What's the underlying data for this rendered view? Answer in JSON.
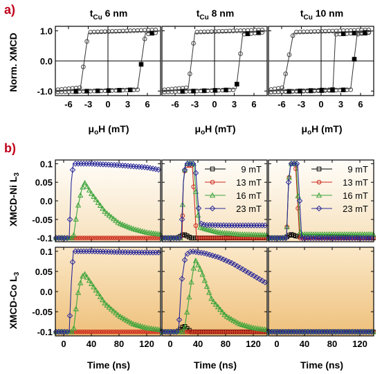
{
  "panel_a": {
    "letter": "a)",
    "ylabel": "Norm. XMCD",
    "xlabel": "μoH (mT)",
    "titles": [
      "tCu 6 nm",
      "tCu 8 nm",
      "tCu 10 nm"
    ],
    "xticks": [
      "-6",
      "-3",
      "0",
      "3",
      "6"
    ],
    "yticks": [
      "1.0",
      "0.0",
      "-1.0"
    ]
  },
  "panel_b": {
    "letter": "b)",
    "ylabels": [
      "XMCD-Ni L3",
      "XMCD-Co L3"
    ],
    "xlabel": "Time (ns)",
    "xticks": [
      "0",
      "40",
      "80",
      "120"
    ],
    "yticks": [
      "0.1",
      "0.05",
      "0.0",
      "-0.05",
      "-0.1"
    ],
    "legend": [
      "9 mT",
      "13 mT",
      "16 mT",
      "23 mT"
    ]
  },
  "colors": {
    "series_9": "#000000",
    "series_13": "#cc2a1a",
    "series_16": "#3aa43a",
    "series_23": "#2a2a9a",
    "background_top": "#fffaf2",
    "background_bottom": "#f1c27a",
    "panel_letter": "#c0001a"
  },
  "chart_data": [
    {
      "type": "line",
      "title": "tCu 6 nm",
      "xlabel": "μoH (mT)",
      "ylabel": "Norm. XMCD",
      "xlim": [
        -8,
        8
      ],
      "ylim": [
        -1.15,
        1.15
      ],
      "series": [
        {
          "branch": "descending",
          "x": [
            8,
            -3,
            -3.6,
            -4.2,
            -8
          ],
          "y": [
            1.0,
            0.92,
            0,
            -0.92,
            -1.0
          ]
        },
        {
          "branch": "ascending",
          "x": [
            -8,
            4.5,
            5.1,
            5.7,
            8
          ],
          "y": [
            -1.0,
            -0.92,
            0,
            0.92,
            1.0
          ]
        }
      ]
    },
    {
      "type": "line",
      "title": "tCu 8 nm",
      "xlabel": "μoH (mT)",
      "xlim": [
        -8,
        8
      ],
      "ylim": [
        -1.15,
        1.15
      ],
      "series": [
        {
          "branch": "descending",
          "x": [
            8,
            -3.0,
            -3.5,
            -4.0,
            -8
          ],
          "y": [
            1.0,
            0.92,
            0,
            -0.92,
            -1.0
          ]
        },
        {
          "branch": "ascending",
          "x": [
            -8,
            3.3,
            3.8,
            4.3,
            8
          ],
          "y": [
            -1.0,
            -0.92,
            0,
            0.92,
            1.0
          ]
        }
      ]
    },
    {
      "type": "line",
      "title": "tCu 10 nm",
      "xlabel": "μoH (mT)",
      "xlim": [
        -8,
        8
      ],
      "ylim": [
        -1.15,
        1.15
      ],
      "series": [
        {
          "branch": "descending",
          "x": [
            8,
            -4.2,
            -5.0,
            -5.8,
            -8
          ],
          "y": [
            1.0,
            0.92,
            0,
            -0.92,
            -1.0
          ]
        },
        {
          "branch": "ascending",
          "x": [
            -8,
            1.8,
            2.0,
            2.2,
            8
          ],
          "y": [
            -1.0,
            -0.92,
            0,
            0.92,
            1.0
          ]
        },
        {
          "branch": "ascending-2",
          "x": [
            -8,
            4.5,
            5.0,
            5.5,
            8
          ],
          "y": [
            -1.0,
            -0.92,
            0,
            0.92,
            1.0
          ]
        }
      ]
    },
    {
      "type": "line",
      "ylabel": "XMCD-Ni L3",
      "xlabel": "",
      "xlim": [
        -12,
        140
      ],
      "ylim": [
        -0.11,
        0.11
      ],
      "series": [
        {
          "name": "13 mT",
          "x": [
            -12,
            140
          ],
          "y": [
            -0.1,
            -0.1
          ]
        },
        {
          "name": "16 mT",
          "x": [
            -12,
            14,
            20,
            26,
            30,
            40,
            60,
            80,
            100,
            120,
            140
          ],
          "y": [
            -0.1,
            -0.1,
            -0.02,
            0.03,
            0.05,
            0.02,
            -0.03,
            -0.06,
            -0.075,
            -0.085,
            -0.09
          ]
        },
        {
          "name": "23 mT",
          "x": [
            -12,
            8,
            11,
            14,
            40,
            80,
            120,
            140
          ],
          "y": [
            -0.1,
            -0.1,
            0.05,
            0.1,
            0.1,
            0.096,
            0.09,
            0.083
          ]
        }
      ]
    },
    {
      "type": "line",
      "xlim": [
        -12,
        140
      ],
      "ylim": [
        -0.11,
        0.11
      ],
      "series": [
        {
          "name": "9 mT",
          "x": [
            -12,
            10,
            20,
            30,
            140
          ],
          "y": [
            -0.1,
            -0.1,
            -0.09,
            -0.1,
            -0.1
          ]
        },
        {
          "name": "13 mT",
          "x": [
            -12,
            17,
            19,
            22,
            32,
            35,
            38,
            140
          ],
          "y": [
            -0.1,
            -0.1,
            0.05,
            0.095,
            0.095,
            0.0,
            -0.1,
            -0.1
          ]
        },
        {
          "name": "16 mT",
          "x": [
            -12,
            16,
            19,
            22,
            34,
            38,
            42,
            50,
            70,
            100,
            140
          ],
          "y": [
            -0.1,
            -0.1,
            0.05,
            0.1,
            0.1,
            0.0,
            -0.07,
            -0.075,
            -0.085,
            -0.09,
            -0.092
          ]
        },
        {
          "name": "23 mT",
          "x": [
            -12,
            16,
            19,
            22,
            36,
            40,
            43,
            50,
            80,
            140
          ],
          "y": [
            -0.1,
            -0.1,
            0.05,
            0.1,
            0.1,
            0.0,
            -0.06,
            -0.065,
            -0.066,
            -0.066
          ]
        }
      ]
    },
    {
      "type": "line",
      "xlim": [
        -12,
        140
      ],
      "ylim": [
        -0.11,
        0.11
      ],
      "series": [
        {
          "name": "9 mT",
          "x": [
            -12,
            12,
            20,
            28,
            140
          ],
          "y": [
            -0.1,
            -0.1,
            -0.09,
            -0.095,
            -0.1
          ]
        },
        {
          "name": "13 mT",
          "x": [
            -12,
            14,
            17,
            20,
            27,
            30,
            33,
            140
          ],
          "y": [
            -0.1,
            -0.1,
            0.05,
            0.1,
            0.1,
            0.0,
            -0.1,
            -0.1
          ]
        },
        {
          "name": "16 mT",
          "x": [
            -12,
            14,
            17,
            20,
            28,
            31,
            34,
            140
          ],
          "y": [
            -0.1,
            -0.1,
            0.05,
            0.1,
            0.1,
            0.0,
            -0.09,
            -0.09
          ]
        },
        {
          "name": "23 mT",
          "x": [
            -12,
            14,
            17,
            20,
            30,
            33,
            36,
            140
          ],
          "y": [
            -0.1,
            -0.1,
            0.05,
            0.1,
            0.1,
            0.0,
            -0.1,
            -0.1
          ]
        }
      ]
    },
    {
      "type": "line",
      "ylabel": "XMCD-Co L3",
      "xlabel": "Time (ns)",
      "xlim": [
        -12,
        140
      ],
      "ylim": [
        -0.11,
        0.11
      ],
      "series": [
        {
          "name": "13 mT",
          "x": [
            -12,
            140
          ],
          "y": [
            -0.1,
            -0.1
          ]
        },
        {
          "name": "16 mT",
          "x": [
            -12,
            14,
            20,
            26,
            30,
            40,
            60,
            80,
            100,
            120,
            140
          ],
          "y": [
            -0.1,
            -0.1,
            -0.01,
            0.035,
            0.045,
            0.02,
            -0.03,
            -0.06,
            -0.08,
            -0.09,
            -0.095
          ]
        },
        {
          "name": "23 mT",
          "x": [
            -12,
            8,
            11,
            14,
            40,
            80,
            120,
            140
          ],
          "y": [
            -0.1,
            -0.1,
            0.02,
            0.1,
            0.1,
            0.098,
            0.097,
            0.097
          ]
        }
      ]
    },
    {
      "type": "line",
      "xlabel": "Time (ns)",
      "xlim": [
        -12,
        140
      ],
      "ylim": [
        -0.11,
        0.11
      ],
      "series": [
        {
          "name": "9 mT",
          "x": [
            -12,
            10,
            20,
            30,
            140
          ],
          "y": [
            -0.1,
            -0.1,
            -0.085,
            -0.1,
            -0.1
          ]
        },
        {
          "name": "13 mT",
          "x": [
            -12,
            140
          ],
          "y": [
            -0.1,
            -0.1
          ]
        },
        {
          "name": "16 mT",
          "x": [
            -12,
            20,
            26,
            32,
            36,
            45,
            60,
            80,
            100,
            120,
            140
          ],
          "y": [
            -0.1,
            -0.1,
            -0.03,
            0.04,
            0.08,
            0.05,
            -0.02,
            -0.06,
            -0.08,
            -0.09,
            -0.095
          ]
        },
        {
          "name": "23 mT",
          "x": [
            -12,
            12,
            16,
            22,
            30,
            50,
            70,
            90,
            110,
            130,
            140
          ],
          "y": [
            -0.1,
            -0.1,
            0.02,
            0.09,
            0.1,
            0.095,
            0.085,
            0.07,
            0.05,
            0.03,
            0.02
          ]
        }
      ]
    },
    {
      "type": "line",
      "xlabel": "Time (ns)",
      "xlim": [
        -12,
        140
      ],
      "ylim": [
        -0.11,
        0.11
      ],
      "series": [
        {
          "name": "9 mT",
          "x": [
            -12,
            140
          ],
          "y": [
            -0.1,
            -0.1
          ]
        },
        {
          "name": "13 mT",
          "x": [
            -12,
            140
          ],
          "y": [
            -0.1,
            -0.1
          ]
        },
        {
          "name": "16 mT",
          "x": [
            -12,
            140
          ],
          "y": [
            -0.1,
            -0.1
          ]
        },
        {
          "name": "23 mT",
          "x": [
            -12,
            140
          ],
          "y": [
            -0.1,
            -0.1
          ]
        }
      ]
    }
  ]
}
